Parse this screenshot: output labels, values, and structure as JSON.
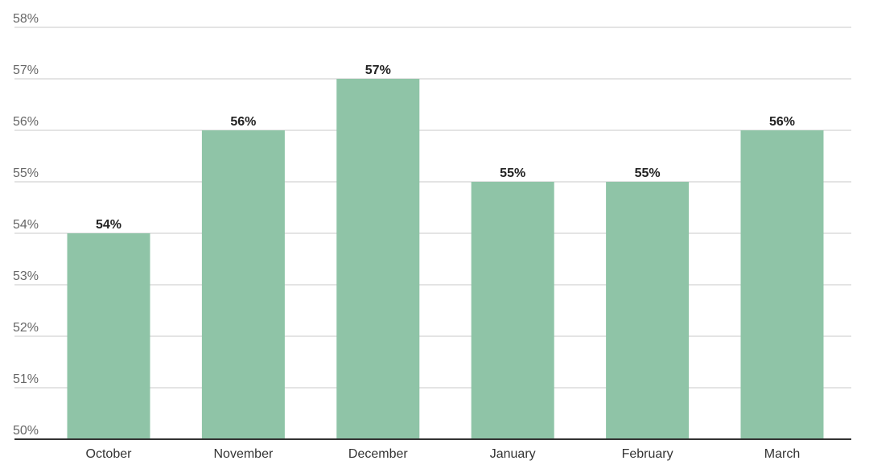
{
  "chart_data": {
    "type": "bar",
    "categories": [
      "October",
      "November",
      "December",
      "January",
      "February",
      "March"
    ],
    "values": [
      54,
      56,
      57,
      55,
      55,
      56
    ],
    "data_labels": [
      "54%",
      "56%",
      "57%",
      "55%",
      "55%",
      "56%"
    ],
    "ylim": [
      50,
      58
    ],
    "yticks": [
      50,
      51,
      52,
      53,
      54,
      55,
      56,
      57,
      58
    ],
    "ytick_labels": [
      "50%",
      "51%",
      "52%",
      "53%",
      "54%",
      "55%",
      "56%",
      "57%",
      "58%"
    ],
    "grid": true,
    "legend": "none",
    "colors": {
      "bar": "#8fc4a7",
      "grid": "#c8c8c8",
      "baseline": "#333333"
    }
  }
}
